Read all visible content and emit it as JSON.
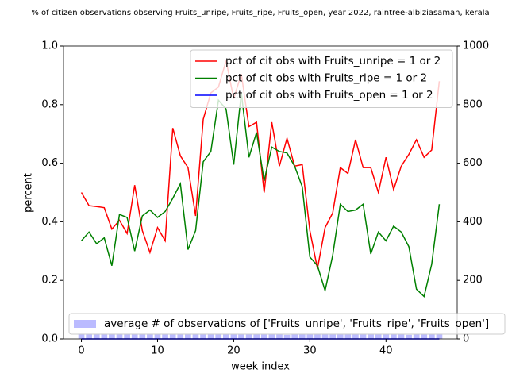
{
  "chart_data": {
    "type": "line",
    "title": "% of citizen observations observing Fruits_unripe, Fruits_ripe, Fruits_open, year 2022, raintree-albiziasaman, kerala",
    "x_label": "week index",
    "y_label": "percent",
    "x": [
      0,
      1,
      2,
      3,
      4,
      5,
      6,
      7,
      8,
      9,
      10,
      11,
      12,
      13,
      14,
      15,
      16,
      17,
      18,
      19,
      20,
      21,
      22,
      23,
      24,
      25,
      26,
      27,
      28,
      29,
      30,
      31,
      32,
      33,
      34,
      35,
      36,
      37,
      38,
      39,
      40,
      41,
      42,
      43,
      44,
      45,
      46,
      47
    ],
    "series": [
      {
        "name": "pct of cit obs with Fruits_unripe = 1 or 2",
        "color": "#ff0000",
        "values": [
          0.5,
          0.455,
          0.452,
          0.448,
          0.375,
          0.405,
          0.36,
          0.525,
          0.37,
          0.295,
          0.38,
          0.335,
          0.72,
          0.625,
          0.585,
          0.42,
          0.75,
          0.84,
          0.86,
          0.95,
          0.82,
          0.905,
          0.725,
          0.74,
          0.5,
          0.74,
          0.59,
          0.685,
          0.59,
          0.595,
          0.37,
          0.24,
          0.38,
          0.43,
          0.585,
          0.565,
          0.68,
          0.585,
          0.585,
          0.5,
          0.62,
          0.51,
          0.59,
          0.63,
          0.68,
          0.62,
          0.645,
          0.88
        ]
      },
      {
        "name": "pct of cit obs with Fruits_ripe = 1 or 2",
        "color": "#008000",
        "values": [
          0.335,
          0.365,
          0.325,
          0.345,
          0.25,
          0.425,
          0.415,
          0.3,
          0.42,
          0.44,
          0.415,
          0.435,
          0.48,
          0.53,
          0.305,
          0.37,
          0.605,
          0.64,
          0.815,
          0.785,
          0.595,
          0.84,
          0.62,
          0.705,
          0.54,
          0.655,
          0.64,
          0.635,
          0.59,
          0.52,
          0.28,
          0.25,
          0.165,
          0.285,
          0.46,
          0.435,
          0.44,
          0.46,
          0.29,
          0.365,
          0.335,
          0.385,
          0.365,
          0.315,
          0.17,
          0.145,
          0.255,
          0.46
        ]
      },
      {
        "name": "pct of cit obs with Fruits_open = 1 or 2",
        "color": "#0000ff",
        "values": [
          0,
          0,
          0,
          0,
          0,
          0,
          0,
          0,
          0,
          0,
          0,
          0,
          0,
          0,
          0,
          0,
          0,
          0,
          0,
          0,
          0,
          0,
          0,
          0,
          0,
          0,
          0,
          0,
          0,
          0,
          0,
          0,
          0,
          0,
          0,
          0,
          0,
          0,
          0,
          0,
          0,
          0,
          0,
          0,
          0,
          0,
          0,
          0
        ]
      },
      {
        "name": "average # of observations of ['Fruits_unripe', 'Fruits_ripe', 'Fruits_open']",
        "color": "#bbbbff",
        "axis": "y2",
        "type": "bar",
        "values": [
          18,
          18,
          18,
          18,
          18,
          18,
          18,
          18,
          18,
          18,
          18,
          18,
          18,
          18,
          18,
          18,
          18,
          18,
          18,
          17,
          17,
          17,
          17,
          16,
          16,
          15,
          15,
          14,
          15,
          16,
          17,
          18,
          18,
          18,
          18,
          18,
          18,
          18,
          18,
          17,
          16,
          17,
          15,
          14,
          16,
          17,
          17,
          18
        ]
      }
    ],
    "xlim": [
      -2.35,
      49.35
    ],
    "xticks": [
      0,
      10,
      20,
      30,
      40
    ],
    "ylim": [
      0,
      1
    ],
    "yticks": [
      {
        "value": 0,
        "label": "0.0"
      },
      {
        "value": 0.2,
        "label": "0.2"
      },
      {
        "value": 0.4,
        "label": "0.4"
      },
      {
        "value": 0.6,
        "label": "0.6"
      },
      {
        "value": 0.8,
        "label": "0.8"
      },
      {
        "value": 1,
        "label": "1.0"
      }
    ],
    "y2lim": [
      0,
      1000
    ],
    "y2ticks": [
      0,
      200,
      400,
      600,
      800,
      1000
    ],
    "legend": "upper right",
    "legend2": "lower left"
  }
}
